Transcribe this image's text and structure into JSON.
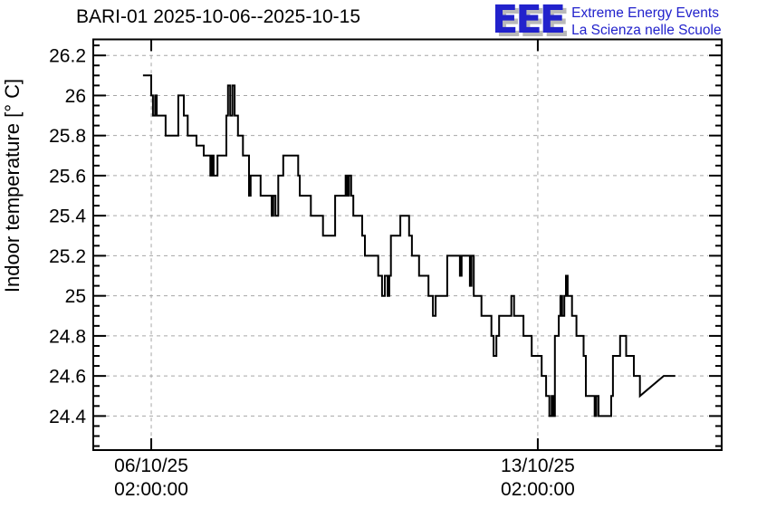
{
  "header": {
    "title": "BARI-01 2025-10-06--2025-10-15"
  },
  "logo": {
    "acronym": "EEE",
    "line1": "Extreme Energy Events",
    "line2": "La Scienza nelle Scuole",
    "color": "#2222cc",
    "shadow_color": "#b9b9b9"
  },
  "chart_data": {
    "type": "line",
    "style": "step",
    "title": "BARI-01 2025-10-06--2025-10-15",
    "xlabel": "",
    "ylabel": "Indoor temperature [° C]",
    "x_unit": "days since 06/10/25 02:00:00",
    "xlim": [
      -1.05,
      10.33
    ],
    "ylim": [
      24.23,
      26.28
    ],
    "grid": true,
    "grid_color": "#a6a6a6",
    "line_color": "#000000",
    "y_major_ticks": [
      24.4,
      24.6,
      24.8,
      25.0,
      25.2,
      25.4,
      25.6,
      25.8,
      26.0,
      26.2
    ],
    "y_tick_labels": [
      "24.4",
      "24.6",
      "24.8",
      "25",
      "25.2",
      "25.4",
      "25.6",
      "25.8",
      "26",
      "26.2"
    ],
    "y_minor_step": 0.05,
    "y_minor_range": [
      24.25,
      26.25
    ],
    "x_major_ticks": [
      0,
      7
    ],
    "x_tick_labels": [
      [
        "06/10/25",
        "02:00:00"
      ],
      [
        "13/10/25",
        "02:00:00"
      ]
    ],
    "points": [
      [
        -0.15,
        26.1
      ],
      [
        0.0,
        26.0
      ],
      [
        0.03,
        25.9
      ],
      [
        0.07,
        26.0
      ],
      [
        0.1,
        25.9
      ],
      [
        0.26,
        25.8
      ],
      [
        0.49,
        26.0
      ],
      [
        0.59,
        25.9
      ],
      [
        0.66,
        25.8
      ],
      [
        0.82,
        25.75
      ],
      [
        0.95,
        25.7
      ],
      [
        1.07,
        25.6
      ],
      [
        1.1,
        25.7
      ],
      [
        1.13,
        25.6
      ],
      [
        1.2,
        25.7
      ],
      [
        1.36,
        25.9
      ],
      [
        1.39,
        26.05
      ],
      [
        1.43,
        25.9
      ],
      [
        1.47,
        26.05
      ],
      [
        1.51,
        25.9
      ],
      [
        1.57,
        25.8
      ],
      [
        1.66,
        25.7
      ],
      [
        1.77,
        25.5
      ],
      [
        1.8,
        25.6
      ],
      [
        1.98,
        25.5
      ],
      [
        2.18,
        25.4
      ],
      [
        2.21,
        25.5
      ],
      [
        2.25,
        25.4
      ],
      [
        2.3,
        25.6
      ],
      [
        2.39,
        25.7
      ],
      [
        2.66,
        25.6
      ],
      [
        2.69,
        25.5
      ],
      [
        2.89,
        25.4
      ],
      [
        3.11,
        25.3
      ],
      [
        3.33,
        25.5
      ],
      [
        3.52,
        25.6
      ],
      [
        3.55,
        25.5
      ],
      [
        3.58,
        25.6
      ],
      [
        3.62,
        25.5
      ],
      [
        3.66,
        25.4
      ],
      [
        3.82,
        25.3
      ],
      [
        3.87,
        25.2
      ],
      [
        4.11,
        25.1
      ],
      [
        4.18,
        25.0
      ],
      [
        4.23,
        25.1
      ],
      [
        4.28,
        25.0
      ],
      [
        4.31,
        25.1
      ],
      [
        4.34,
        25.3
      ],
      [
        4.51,
        25.4
      ],
      [
        4.67,
        25.3
      ],
      [
        4.72,
        25.2
      ],
      [
        4.85,
        25.1
      ],
      [
        5.02,
        25.0
      ],
      [
        5.1,
        24.9
      ],
      [
        5.15,
        25.0
      ],
      [
        5.36,
        25.2
      ],
      [
        5.59,
        25.1
      ],
      [
        5.62,
        25.2
      ],
      [
        5.77,
        25.05
      ],
      [
        5.8,
        25.2
      ],
      [
        5.84,
        25.0
      ],
      [
        5.98,
        24.9
      ],
      [
        6.16,
        24.8
      ],
      [
        6.2,
        24.7
      ],
      [
        6.25,
        24.8
      ],
      [
        6.3,
        24.9
      ],
      [
        6.52,
        25.0
      ],
      [
        6.57,
        24.9
      ],
      [
        6.74,
        24.8
      ],
      [
        6.89,
        24.7
      ],
      [
        7.07,
        24.6
      ],
      [
        7.15,
        24.5
      ],
      [
        7.21,
        24.4
      ],
      [
        7.25,
        24.5
      ],
      [
        7.28,
        24.4
      ],
      [
        7.31,
        24.8
      ],
      [
        7.38,
        24.9
      ],
      [
        7.41,
        25.0
      ],
      [
        7.44,
        24.9
      ],
      [
        7.48,
        25.0
      ],
      [
        7.51,
        25.1
      ],
      [
        7.54,
        25.0
      ],
      [
        7.62,
        24.9
      ],
      [
        7.7,
        24.8
      ],
      [
        7.83,
        24.7
      ],
      [
        7.87,
        24.5
      ],
      [
        8.03,
        24.4
      ],
      [
        8.06,
        24.5
      ],
      [
        8.1,
        24.4
      ],
      [
        8.33,
        24.5
      ],
      [
        8.36,
        24.7
      ],
      [
        8.49,
        24.8
      ],
      [
        8.6,
        24.7
      ],
      [
        8.74,
        24.6
      ],
      [
        8.85,
        24.5
      ],
      [
        9.28,
        24.6,
        "diag"
      ],
      [
        9.49,
        24.6
      ]
    ]
  }
}
